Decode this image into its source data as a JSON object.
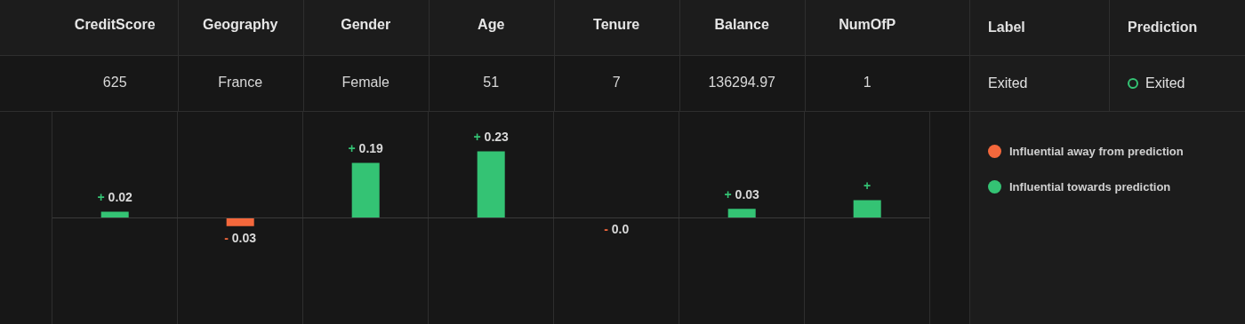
{
  "chart_data": {
    "type": "bar",
    "stacked": true,
    "categories": [
      "CreditScore",
      "Geography",
      "Gender",
      "Age",
      "Tenure",
      "Balance",
      "NumOfP"
    ],
    "ylim": [
      -0.37,
      0.37
    ],
    "grid": "x",
    "legend": "right",
    "series": [
      {
        "name": "Influential away from prediction",
        "color": "#f4683c",
        "values": [
          null,
          -0.03,
          null,
          null,
          -0.0,
          null,
          null
        ],
        "value_labels": [
          null,
          "- 0.03",
          null,
          null,
          "- 0.0",
          null,
          null
        ]
      },
      {
        "name": "Influential towards prediction",
        "color": "#34c374",
        "values": [
          0.02,
          null,
          0.19,
          0.23,
          null,
          0.03,
          0.06
        ],
        "value_labels": [
          "+ 0.02",
          null,
          "+ 0.19",
          "+ 0.23",
          null,
          "+ 0.03",
          "+"
        ]
      }
    ],
    "annotations": [
      "625",
      "France",
      "Female",
      "51",
      "7",
      "136294.97",
      "1",
      "Label",
      "Prediction",
      "Exited",
      "Exited"
    ]
  }
}
